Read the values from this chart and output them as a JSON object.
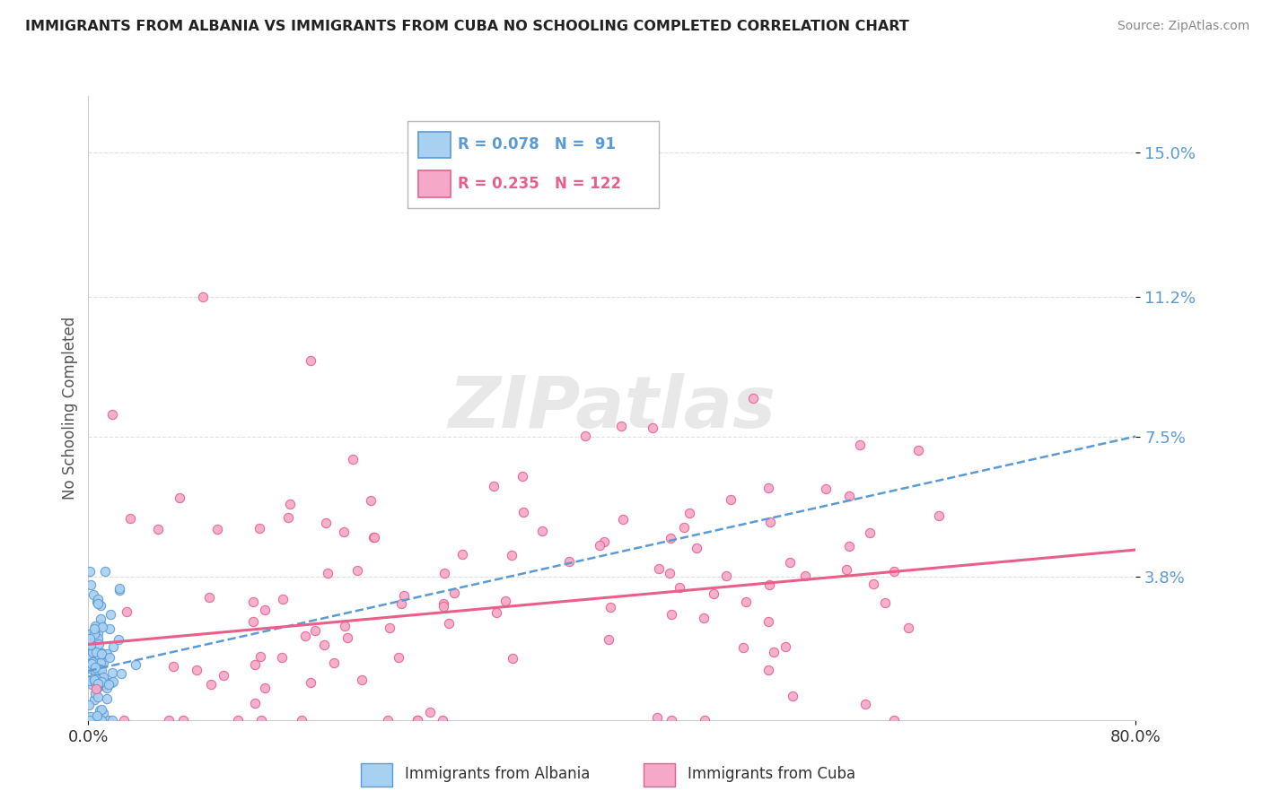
{
  "title": "IMMIGRANTS FROM ALBANIA VS IMMIGRANTS FROM CUBA NO SCHOOLING COMPLETED CORRELATION CHART",
  "source": "Source: ZipAtlas.com",
  "ylabel": "No Schooling Completed",
  "xlim": [
    0.0,
    0.8
  ],
  "ylim": [
    0.0,
    0.165
  ],
  "xtick_labels": [
    "0.0%",
    "80.0%"
  ],
  "ytick_labels": [
    "15.0%",
    "11.2%",
    "7.5%",
    "3.8%"
  ],
  "ytick_values": [
    0.15,
    0.112,
    0.075,
    0.038
  ],
  "albania_color": "#a8d0f0",
  "cuba_color": "#f5a8c8",
  "albania_edge_color": "#5b9bd5",
  "cuba_edge_color": "#e8608a",
  "albania_line_color": "#5b9bd5",
  "cuba_line_color": "#e8608a",
  "albania_R": 0.078,
  "albania_N": 91,
  "cuba_R": 0.235,
  "cuba_N": 122,
  "watermark": "ZIPatlas",
  "background_color": "#ffffff",
  "grid_color": "#dddddd",
  "title_color": "#222222",
  "source_color": "#888888",
  "ytick_color": "#5b9bd5",
  "xtick_color": "#333333",
  "ylabel_color": "#555555",
  "albania_trend_start_y": 0.013,
  "albania_trend_end_y": 0.075,
  "cuba_trend_start_y": 0.02,
  "cuba_trend_end_y": 0.045
}
